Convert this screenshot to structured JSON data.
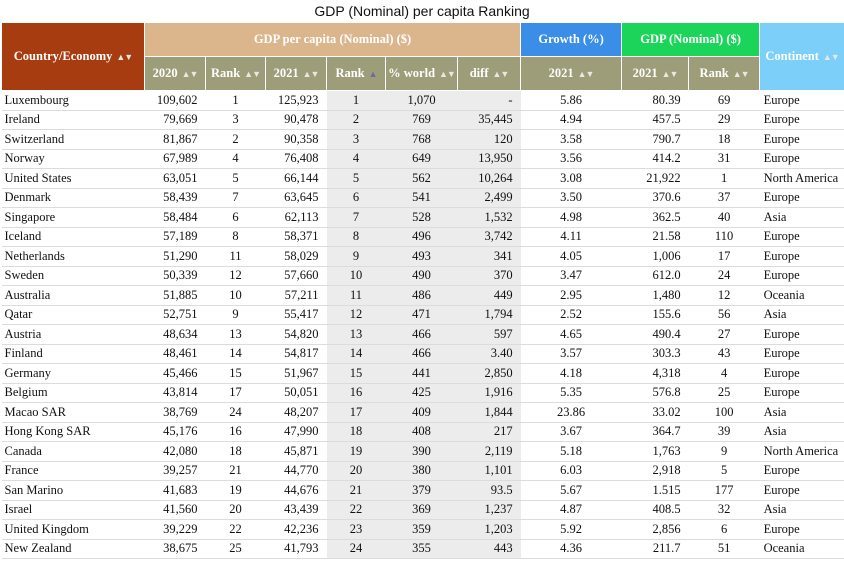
{
  "title": "GDP (Nominal) per capita Ranking",
  "headers": {
    "country": "Country/Economy",
    "gdp_group": "GDP per capita (Nominal) ($)",
    "growth_group": "Growth (%)",
    "nominal_group": "GDP (Nominal) ($)",
    "continent": "Continent",
    "sub": [
      "2020",
      "Rank",
      "2021",
      "Rank",
      "% world",
      "diff",
      "2021",
      "2021",
      "Rank"
    ],
    "sort_icon": "sort-updown-icon"
  },
  "rows": [
    [
      "Luxembourg",
      "109,602",
      "1",
      "125,923",
      "1",
      "1,070",
      "-",
      "5.86",
      "80.39",
      "69",
      "Europe"
    ],
    [
      "Ireland",
      "79,669",
      "3",
      "90,478",
      "2",
      "769",
      "35,445",
      "4.94",
      "457.5",
      "29",
      "Europe"
    ],
    [
      "Switzerland",
      "81,867",
      "2",
      "90,358",
      "3",
      "768",
      "120",
      "3.58",
      "790.7",
      "18",
      "Europe"
    ],
    [
      "Norway",
      "67,989",
      "4",
      "76,408",
      "4",
      "649",
      "13,950",
      "3.56",
      "414.2",
      "31",
      "Europe"
    ],
    [
      "United States",
      "63,051",
      "5",
      "66,144",
      "5",
      "562",
      "10,264",
      "3.08",
      "21,922",
      "1",
      "North America"
    ],
    [
      "Denmark",
      "58,439",
      "7",
      "63,645",
      "6",
      "541",
      "2,499",
      "3.50",
      "370.6",
      "37",
      "Europe"
    ],
    [
      "Singapore",
      "58,484",
      "6",
      "62,113",
      "7",
      "528",
      "1,532",
      "4.98",
      "362.5",
      "40",
      "Asia"
    ],
    [
      "Iceland",
      "57,189",
      "8",
      "58,371",
      "8",
      "496",
      "3,742",
      "4.11",
      "21.58",
      "110",
      "Europe"
    ],
    [
      "Netherlands",
      "51,290",
      "11",
      "58,029",
      "9",
      "493",
      "341",
      "4.05",
      "1,006",
      "17",
      "Europe"
    ],
    [
      "Sweden",
      "50,339",
      "12",
      "57,660",
      "10",
      "490",
      "370",
      "3.47",
      "612.0",
      "24",
      "Europe"
    ],
    [
      "Australia",
      "51,885",
      "10",
      "57,211",
      "11",
      "486",
      "449",
      "2.95",
      "1,480",
      "12",
      "Oceania"
    ],
    [
      "Qatar",
      "52,751",
      "9",
      "55,417",
      "12",
      "471",
      "1,794",
      "2.52",
      "155.6",
      "56",
      "Asia"
    ],
    [
      "Austria",
      "48,634",
      "13",
      "54,820",
      "13",
      "466",
      "597",
      "4.65",
      "490.4",
      "27",
      "Europe"
    ],
    [
      "Finland",
      "48,461",
      "14",
      "54,817",
      "14",
      "466",
      "3.40",
      "3.57",
      "303.3",
      "43",
      "Europe"
    ],
    [
      "Germany",
      "45,466",
      "15",
      "51,967",
      "15",
      "441",
      "2,850",
      "4.18",
      "4,318",
      "4",
      "Europe"
    ],
    [
      "Belgium",
      "43,814",
      "17",
      "50,051",
      "16",
      "425",
      "1,916",
      "5.35",
      "576.8",
      "25",
      "Europe"
    ],
    [
      "Macao SAR",
      "38,769",
      "24",
      "48,207",
      "17",
      "409",
      "1,844",
      "23.86",
      "33.02",
      "100",
      "Asia"
    ],
    [
      "Hong Kong SAR",
      "45,176",
      "16",
      "47,990",
      "18",
      "408",
      "217",
      "3.67",
      "364.7",
      "39",
      "Asia"
    ],
    [
      "Canada",
      "42,080",
      "18",
      "45,871",
      "19",
      "390",
      "2,119",
      "5.18",
      "1,763",
      "9",
      "North America"
    ],
    [
      "France",
      "39,257",
      "21",
      "44,770",
      "20",
      "380",
      "1,101",
      "6.03",
      "2,918",
      "5",
      "Europe"
    ],
    [
      "San Marino",
      "41,683",
      "19",
      "44,676",
      "21",
      "379",
      "93.5",
      "5.67",
      "1.515",
      "177",
      "Europe"
    ],
    [
      "Israel",
      "41,560",
      "20",
      "43,439",
      "22",
      "369",
      "1,237",
      "4.87",
      "408.5",
      "32",
      "Asia"
    ],
    [
      "United Kingdom",
      "39,229",
      "22",
      "42,236",
      "23",
      "359",
      "1,203",
      "5.92",
      "2,856",
      "6",
      "Europe"
    ],
    [
      "New Zealand",
      "38,675",
      "25",
      "41,793",
      "24",
      "355",
      "443",
      "4.36",
      "211.7",
      "51",
      "Oceania"
    ]
  ]
}
